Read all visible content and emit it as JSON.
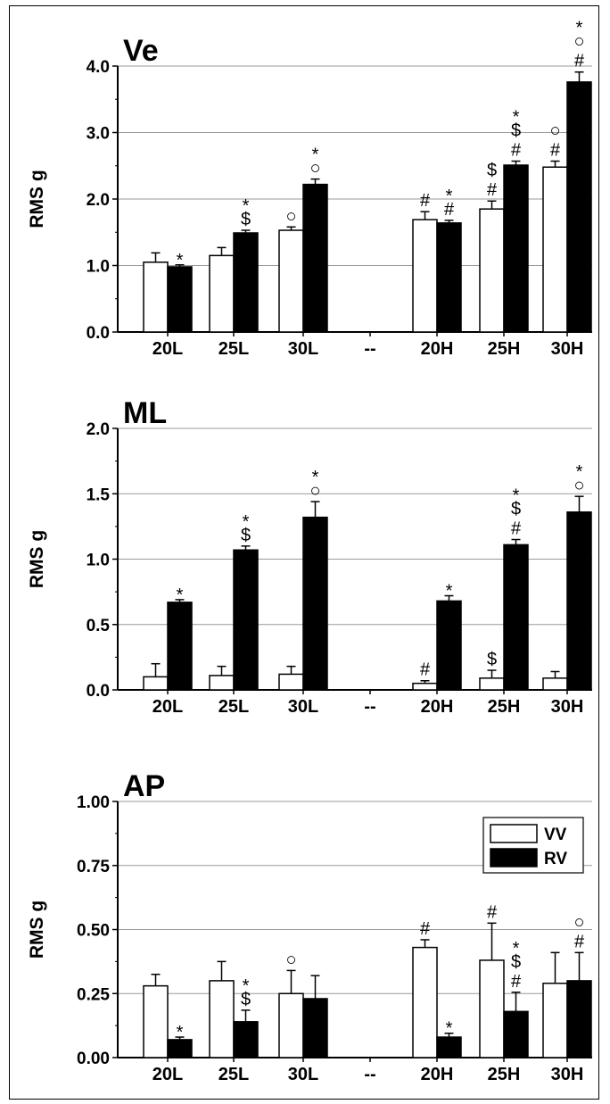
{
  "chart_data": [
    {
      "type": "bar",
      "title": "Ve",
      "ylabel": "RMS g",
      "ylim": [
        0,
        4.0
      ],
      "yticks": [
        "0.0",
        "1.0",
        "2.0",
        "3.0",
        "4.0"
      ],
      "grid": true,
      "categories": [
        "20L",
        "25L",
        "30L",
        "--",
        "20H",
        "25H",
        "30H"
      ],
      "series": [
        {
          "name": "VV",
          "color": "#ffffff",
          "values": [
            1.05,
            1.15,
            1.53,
            null,
            1.69,
            1.85,
            2.48
          ],
          "errors": [
            0.14,
            0.12,
            0.05,
            null,
            0.12,
            0.12,
            0.09
          ],
          "annotations": [
            [],
            [],
            [
              "○"
            ],
            [],
            [
              "#"
            ],
            [
              "$",
              "#"
            ],
            [
              "○",
              "#"
            ]
          ]
        },
        {
          "name": "RV",
          "color": "#000000",
          "values": [
            0.98,
            1.49,
            2.22,
            null,
            1.64,
            2.51,
            3.76
          ],
          "errors": [
            0.03,
            0.04,
            0.08,
            null,
            0.04,
            0.06,
            0.15
          ],
          "annotations": [
            [
              "*"
            ],
            [
              "*",
              "$"
            ],
            [
              "*",
              "○"
            ],
            [],
            [
              "*",
              "#"
            ],
            [
              "*",
              "$",
              "#"
            ],
            [
              "*",
              "○",
              "#"
            ]
          ]
        }
      ]
    },
    {
      "type": "bar",
      "title": "ML",
      "ylabel": "RMS g",
      "ylim": [
        0,
        2.0
      ],
      "yticks": [
        "0.0",
        "0.5",
        "1.0",
        "1.5",
        "2.0"
      ],
      "grid": true,
      "categories": [
        "20L",
        "25L",
        "30L",
        "--",
        "20H",
        "25H",
        "30H"
      ],
      "series": [
        {
          "name": "VV",
          "color": "#ffffff",
          "values": [
            0.1,
            0.11,
            0.12,
            null,
            0.05,
            0.09,
            0.09
          ],
          "errors": [
            0.1,
            0.07,
            0.06,
            null,
            0.02,
            0.06,
            0.05
          ],
          "annotations": [
            [],
            [],
            [],
            [],
            [
              "#"
            ],
            [
              "$"
            ],
            []
          ]
        },
        {
          "name": "RV",
          "color": "#000000",
          "values": [
            0.67,
            1.07,
            1.32,
            null,
            0.68,
            1.11,
            1.36
          ],
          "errors": [
            0.02,
            0.03,
            0.12,
            null,
            0.04,
            0.04,
            0.12
          ],
          "annotations": [
            [
              "*"
            ],
            [
              "*",
              "$"
            ],
            [
              "*",
              "○"
            ],
            [],
            [
              "*"
            ],
            [
              "*",
              "$",
              "#"
            ],
            [
              "*",
              "○"
            ]
          ]
        }
      ]
    },
    {
      "type": "bar",
      "title": "AP",
      "ylabel": "RMS g",
      "ylim": [
        0,
        1.0
      ],
      "yticks": [
        "0.00",
        "0.25",
        "0.50",
        "0.75",
        "1.00"
      ],
      "grid": true,
      "legend_position": "top-right",
      "categories": [
        "20L",
        "25L",
        "30L",
        "--",
        "20H",
        "25H",
        "30H"
      ],
      "series": [
        {
          "name": "VV",
          "color": "#ffffff",
          "values": [
            0.28,
            0.3,
            0.25,
            null,
            0.43,
            0.38,
            0.29
          ],
          "errors": [
            0.045,
            0.075,
            0.09,
            null,
            0.03,
            0.145,
            0.12
          ],
          "annotations": [
            [],
            [],
            [
              "○"
            ],
            [],
            [
              "#"
            ],
            [
              "#"
            ],
            []
          ]
        },
        {
          "name": "RV",
          "color": "#000000",
          "values": [
            0.07,
            0.14,
            0.23,
            null,
            0.08,
            0.18,
            0.3
          ],
          "errors": [
            0.01,
            0.045,
            0.09,
            null,
            0.015,
            0.075,
            0.11
          ],
          "annotations": [
            [
              "*"
            ],
            [
              "*",
              "$"
            ],
            [],
            [],
            [
              "*"
            ],
            [
              "*",
              "$",
              "#"
            ],
            [
              "○",
              "#"
            ]
          ]
        }
      ]
    }
  ],
  "legend": [
    {
      "label": "VV",
      "color": "#ffffff"
    },
    {
      "label": "RV",
      "color": "#000000"
    }
  ]
}
